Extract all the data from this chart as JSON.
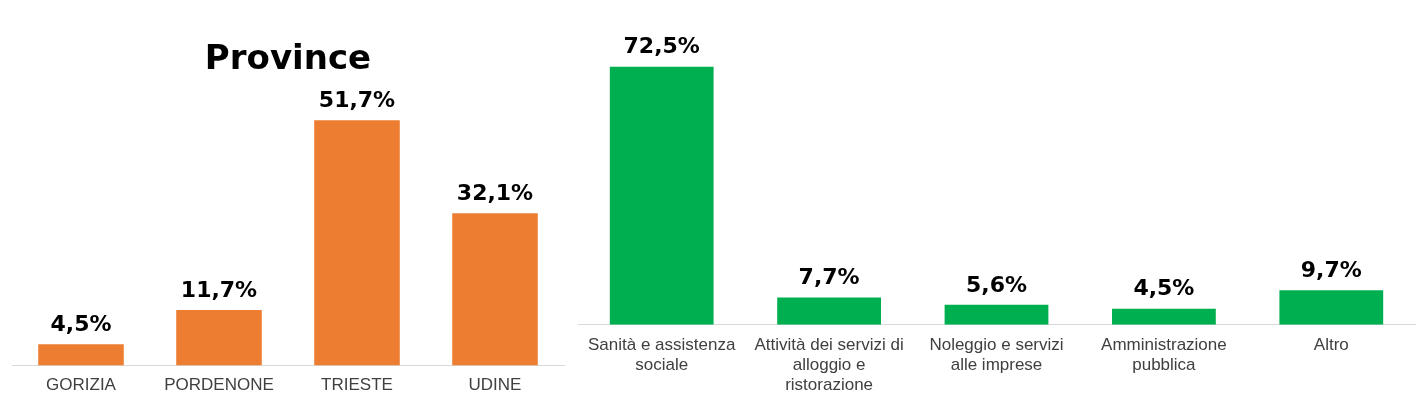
{
  "chart_data": [
    {
      "type": "bar",
      "title": "Province",
      "categories": [
        "GORIZIA",
        "PORDENONE",
        "TRIESTE",
        "UDINE"
      ],
      "values": [
        4.5,
        11.7,
        51.7,
        32.1
      ],
      "value_labels": [
        "4,5%",
        "11,7%",
        "51,7%",
        "32,1%"
      ],
      "color": "#ed7d31",
      "grid": false,
      "legend": false
    },
    {
      "type": "bar",
      "categories": [
        "Sanità e assistenza sociale",
        "Attività dei servizi di alloggio e ristorazione",
        "Noleggio e servizi alle imprese",
        "Amministrazione pubblica",
        "Altro"
      ],
      "values": [
        72.5,
        7.7,
        5.6,
        4.5,
        9.7
      ],
      "value_labels": [
        "72,5%",
        "7,7%",
        "5,6%",
        "4,5%",
        "9,7%"
      ],
      "color": "#00b050",
      "grid": false,
      "legend": false
    }
  ]
}
